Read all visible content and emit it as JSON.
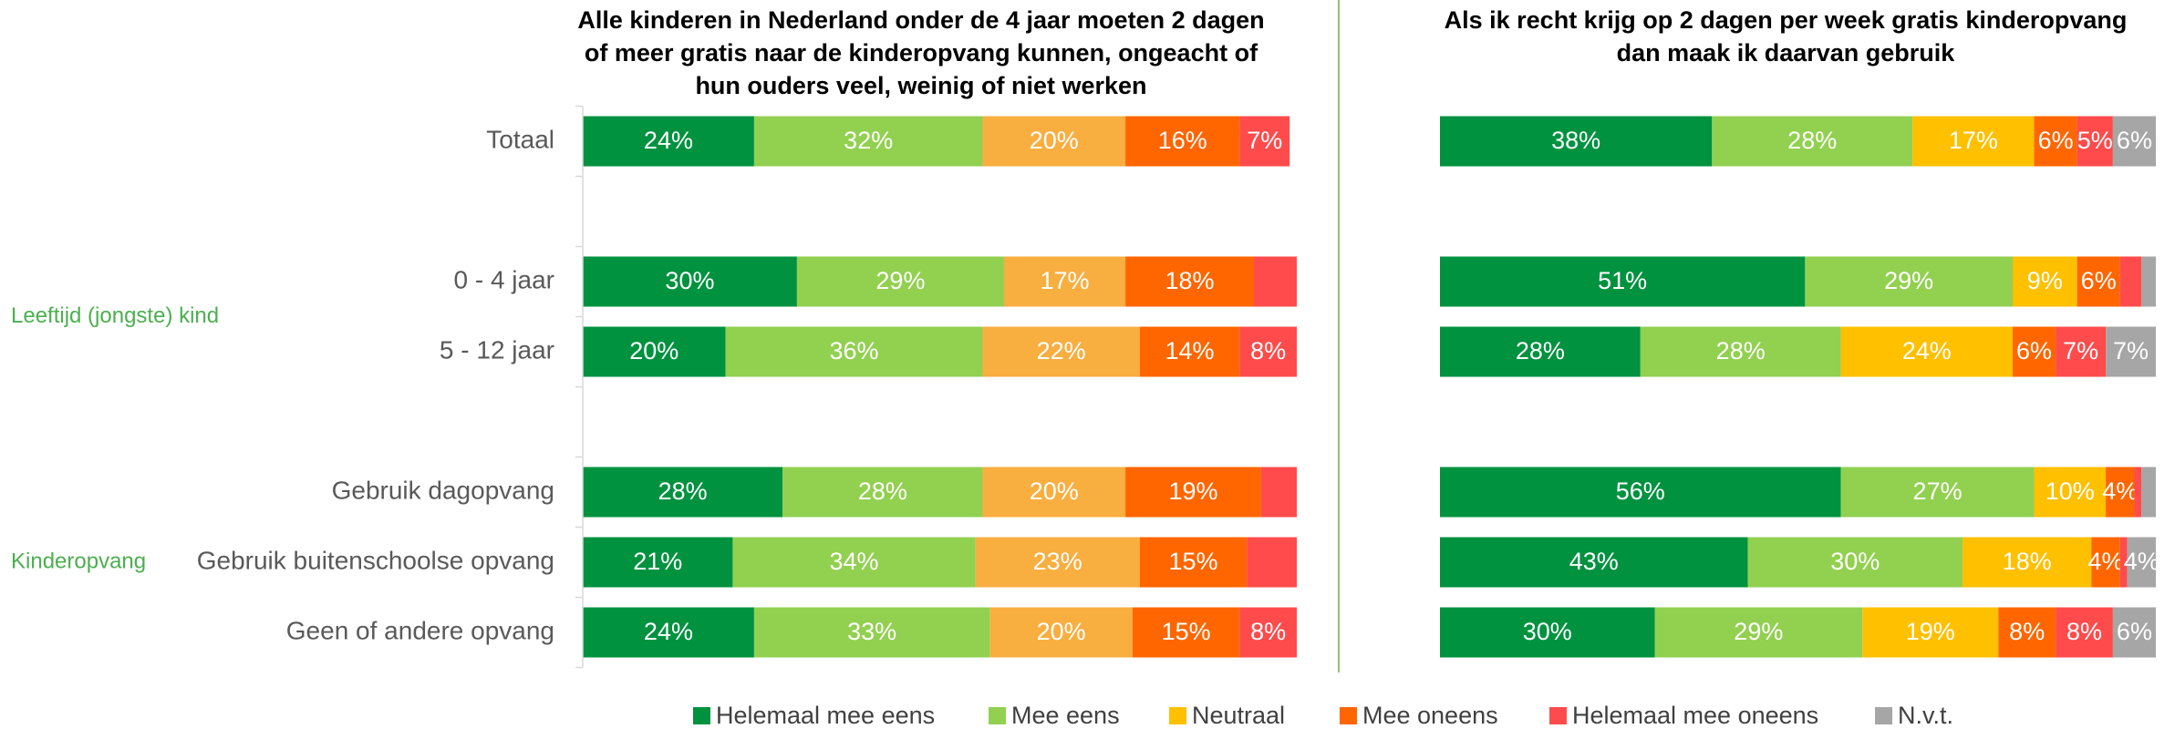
{
  "chart_data": [
    {
      "type": "stacked-bar-horizontal",
      "title": [
        "Alle kinderen in Nederland onder de 4 jaar moeten 2 dagen",
        "of meer gratis naar de kinderopvang kunnen, ongeacht of",
        "hun ouders veel, weinig of niet werken"
      ],
      "categories": [
        "Totaal",
        null,
        "0 - 4 jaar",
        "5 - 12 jaar",
        null,
        "Gebruik dagopvang",
        "Gebruik buitenschoolse opvang",
        "Geen of andere opvang"
      ],
      "group_labels": [
        {
          "label": "Leeftijd (jongste) kind",
          "categories": [
            2,
            3
          ]
        },
        {
          "label": "Kinderopvang",
          "categories": [
            5,
            6,
            7
          ]
        }
      ],
      "xlim": [
        0,
        100
      ],
      "series": [
        {
          "color": "#00923f",
          "values": [
            24,
            null,
            30,
            20,
            null,
            28,
            21,
            24
          ],
          "value_labels": [
            "24%",
            null,
            "30%",
            "20%",
            null,
            "28%",
            "21%",
            "24%"
          ]
        },
        {
          "color": "#92d050",
          "values": [
            32,
            null,
            29,
            36,
            null,
            28,
            34,
            33
          ],
          "value_labels": [
            "32%",
            null,
            "29%",
            "36%",
            null,
            "28%",
            "34%",
            "33%"
          ]
        },
        {
          "color": "#f9ae40",
          "values": [
            20,
            null,
            17,
            22,
            null,
            20,
            23,
            20
          ],
          "value_labels": [
            "20%",
            null,
            "17%",
            "22%",
            null,
            "20%",
            "23%",
            "20%"
          ]
        },
        {
          "color": "#ff6600",
          "values": [
            16,
            null,
            18,
            14,
            null,
            19,
            15,
            15
          ],
          "value_labels": [
            "16%",
            null,
            "18%",
            "14%",
            null,
            "19%",
            "15%",
            "15%"
          ]
        },
        {
          "color": "#ff4b4b",
          "values": [
            7,
            null,
            6,
            8,
            null,
            5,
            7,
            8
          ],
          "value_labels": [
            "7%",
            null,
            null,
            "8%",
            null,
            null,
            null,
            "8%"
          ]
        }
      ]
    },
    {
      "type": "stacked-bar-horizontal",
      "title": [
        "Als ik recht krijg op 2 dagen per week gratis kinderopvang",
        "dan maak ik daarvan gebruik"
      ],
      "xlim": [
        0,
        100
      ],
      "series": [
        {
          "name": "Helemaal mee eens",
          "color": "#00923f",
          "values": [
            38,
            null,
            51,
            28,
            null,
            56,
            43,
            30
          ],
          "value_labels": [
            "38%",
            null,
            "51%",
            "28%",
            null,
            "56%",
            "43%",
            "30%"
          ]
        },
        {
          "name": "Mee eens",
          "color": "#92d050",
          "values": [
            28,
            null,
            29,
            28,
            null,
            27,
            30,
            29
          ],
          "value_labels": [
            "28%",
            null,
            "29%",
            "28%",
            null,
            "27%",
            "30%",
            "29%"
          ]
        },
        {
          "name": "Neutraal",
          "color": "#ffc000",
          "values": [
            17,
            null,
            9,
            24,
            null,
            10,
            18,
            19
          ],
          "value_labels": [
            "17%",
            null,
            "9%",
            "24%",
            null,
            "10%",
            "18%",
            "19%"
          ]
        },
        {
          "name": "Mee oneens",
          "color": "#ff6600",
          "values": [
            6,
            null,
            6,
            6,
            null,
            4,
            4,
            8
          ],
          "value_labels": [
            "6%",
            null,
            "6%",
            "6%",
            null,
            "4%",
            "4%",
            "8%"
          ]
        },
        {
          "name": "Helemaal mee oneens",
          "color": "#ff4b4b",
          "values": [
            5,
            null,
            3,
            7,
            null,
            1,
            1,
            8
          ],
          "value_labels": [
            "5%",
            null,
            null,
            "7%",
            null,
            null,
            null,
            "8%"
          ]
        },
        {
          "name": "N.v.t.",
          "color": "#a6a6a6",
          "values": [
            6,
            null,
            2,
            7,
            null,
            2,
            4,
            6
          ],
          "value_labels": [
            "6%",
            null,
            null,
            "7%",
            null,
            null,
            "4%",
            "6%"
          ]
        }
      ]
    }
  ]
}
